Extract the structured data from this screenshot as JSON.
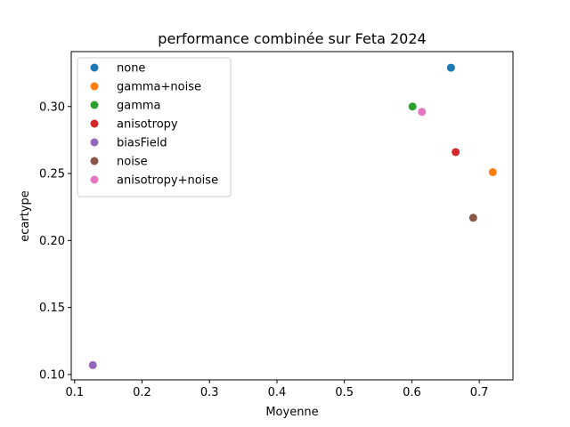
{
  "chart_data": {
    "type": "scatter",
    "title": "performance combinée sur Feta 2024",
    "xlabel": "Moyenne",
    "ylabel": "ecartype",
    "xlim": [
      0.095,
      0.75
    ],
    "ylim": [
      0.096,
      0.341
    ],
    "xticks": [
      0.1,
      0.2,
      0.3,
      0.4,
      0.5,
      0.6,
      0.7
    ],
    "xtick_labels": [
      "0.1",
      "0.2",
      "0.3",
      "0.4",
      "0.5",
      "0.6",
      "0.7"
    ],
    "yticks": [
      0.1,
      0.15,
      0.2,
      0.25,
      0.3
    ],
    "ytick_labels": [
      "0.10",
      "0.15",
      "0.20",
      "0.25",
      "0.30"
    ],
    "grid": false,
    "legend_position": "upper-left",
    "series": [
      {
        "name": "none",
        "color": "#1f77b4",
        "x": [
          0.658
        ],
        "y": [
          0.329
        ]
      },
      {
        "name": "gamma+noise",
        "color": "#ff7f0e",
        "x": [
          0.72
        ],
        "y": [
          0.251
        ]
      },
      {
        "name": "gamma",
        "color": "#2ca02c",
        "x": [
          0.601
        ],
        "y": [
          0.3
        ]
      },
      {
        "name": "anisotropy",
        "color": "#d62728",
        "x": [
          0.665
        ],
        "y": [
          0.266
        ]
      },
      {
        "name": "biasField",
        "color": "#9467bd",
        "x": [
          0.127
        ],
        "y": [
          0.107
        ]
      },
      {
        "name": "noise",
        "color": "#8c564b",
        "x": [
          0.691
        ],
        "y": [
          0.217
        ]
      },
      {
        "name": "anisotropy+noise",
        "color": "#e377c2",
        "x": [
          0.615
        ],
        "y": [
          0.296
        ]
      }
    ]
  }
}
